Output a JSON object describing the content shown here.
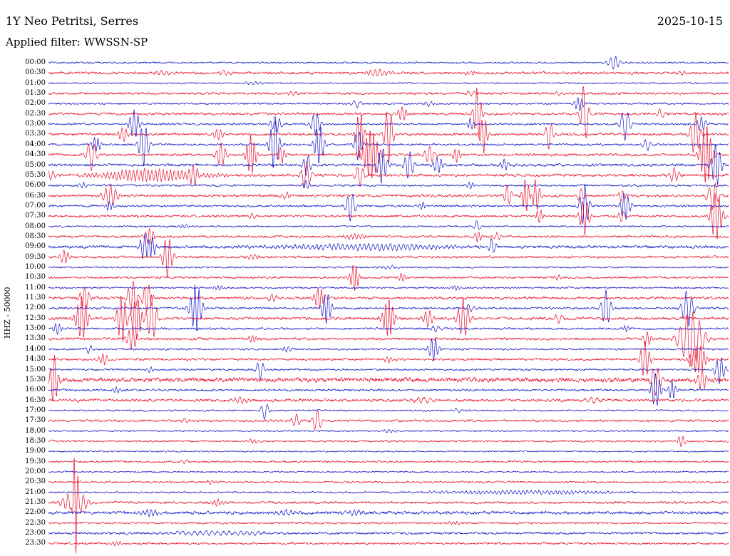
{
  "header": {
    "title": "1Y Neo Petritsi, Serres",
    "date": "2025-10-15",
    "filter_label": "Applied filter: WWSSN-SP"
  },
  "axis": {
    "ylabel": "HHZ - 50000"
  },
  "chart_data": {
    "type": "line",
    "title": "1Y Neo Petritsi, Serres",
    "subtitle": "Applied filter: WWSSN-SP",
    "date": "2025-10-15",
    "ylabel": "HHZ - 50000",
    "minutes_per_row": 30,
    "grid": false,
    "legend": "none",
    "colors": {
      "blue": "#1414c8",
      "red": "#e8112d"
    },
    "rows": [
      {
        "label": "00:00",
        "color": "blue",
        "noise": 1.0,
        "events": [
          [
            0.832,
            9,
            0.006
          ]
        ]
      },
      {
        "label": "00:30",
        "color": "red",
        "noise": 1.4,
        "events": [
          [
            0.17,
            3,
            0.008
          ],
          [
            0.26,
            3,
            0.008
          ],
          [
            0.485,
            4.5,
            0.012
          ],
          [
            0.62,
            2.5,
            0.006
          ],
          [
            0.93,
            2.5,
            0.006
          ]
        ]
      },
      {
        "label": "01:00",
        "color": "blue",
        "noise": 0.9,
        "events": [
          [
            0.3,
            1.5,
            0.01
          ]
        ]
      },
      {
        "label": "01:30",
        "color": "red",
        "noise": 1.3,
        "events": [
          [
            0.62,
            4,
            0.005
          ],
          [
            0.36,
            2.5,
            0.006
          ],
          [
            0.75,
            2.5,
            0.006
          ]
        ]
      },
      {
        "label": "02:00",
        "color": "blue",
        "noise": 1.0,
        "events": [
          [
            0.78,
            10,
            0.005
          ],
          [
            0.452,
            6,
            0.005
          ],
          [
            0.56,
            4,
            0.004
          ]
        ]
      },
      {
        "label": "02:30",
        "color": "red",
        "noise": 1.3,
        "events": [
          [
            0.631,
            38,
            0.004
          ],
          [
            0.788,
            42,
            0.004
          ],
          [
            0.52,
            10,
            0.005
          ],
          [
            0.9,
            6,
            0.005
          ]
        ]
      },
      {
        "label": "03:00",
        "color": "blue",
        "noise": 1.1,
        "events": [
          [
            0.848,
            22,
            0.005
          ],
          [
            0.126,
            20,
            0.005
          ],
          [
            0.335,
            12,
            0.005
          ],
          [
            0.393,
            16,
            0.005
          ],
          [
            0.62,
            8,
            0.004
          ],
          [
            0.96,
            10,
            0.005
          ]
        ]
      },
      {
        "label": "03:30",
        "color": "red",
        "noise": 1.4,
        "events": [
          [
            0.458,
            34,
            0.004
          ],
          [
            0.5,
            40,
            0.0045
          ],
          [
            0.64,
            26,
            0.004
          ],
          [
            0.736,
            20,
            0.004
          ],
          [
            0.951,
            30,
            0.005
          ],
          [
            0.11,
            10,
            0.005
          ],
          [
            0.25,
            8,
            0.005
          ]
        ]
      },
      {
        "label": "04:00",
        "color": "blue",
        "noise": 1.2,
        "events": [
          [
            0.14,
            30,
            0.005
          ],
          [
            0.332,
            36,
            0.005
          ],
          [
            0.398,
            28,
            0.005
          ],
          [
            0.455,
            22,
            0.004
          ],
          [
            0.07,
            10,
            0.005
          ],
          [
            0.88,
            8,
            0.004
          ]
        ]
      },
      {
        "label": "04:30",
        "color": "red",
        "noise": 1.4,
        "events": [
          [
            0.063,
            22,
            0.005
          ],
          [
            0.254,
            16,
            0.005
          ],
          [
            0.298,
            28,
            0.005
          ],
          [
            0.343,
            12,
            0.004
          ],
          [
            0.474,
            34,
            0.008
          ],
          [
            0.967,
            42,
            0.006
          ],
          [
            0.56,
            12,
            0.005
          ],
          [
            0.6,
            10,
            0.004
          ]
        ]
      },
      {
        "label": "05:00",
        "color": "blue",
        "noise": 1.5,
        "events": [
          [
            0.38,
            15,
            0.004
          ],
          [
            0.49,
            26,
            0.005
          ],
          [
            0.53,
            20,
            0.005
          ],
          [
            0.573,
            12,
            0.005
          ],
          [
            0.982,
            30,
            0.005
          ],
          [
            0.67,
            8,
            0.004
          ]
        ]
      },
      {
        "label": "05:30",
        "color": "red",
        "noise": 1.5,
        "events": [
          [
            0.15,
            8,
            0.055
          ],
          [
            0.215,
            12,
            0.006
          ],
          [
            0.379,
            20,
            0.005
          ],
          [
            0.458,
            14,
            0.005
          ],
          [
            0.92,
            10,
            0.005
          ],
          [
            0.0,
            6,
            0.008
          ]
        ]
      },
      {
        "label": "06:00",
        "color": "blue",
        "noise": 1.1,
        "events": [
          [
            0.379,
            6,
            0.004
          ],
          [
            0.62,
            5,
            0.004
          ],
          [
            0.05,
            4,
            0.005
          ]
        ]
      },
      {
        "label": "06:30",
        "color": "red",
        "noise": 1.4,
        "events": [
          [
            0.091,
            16,
            0.007
          ],
          [
            0.675,
            14,
            0.004
          ],
          [
            0.702,
            24,
            0.004
          ],
          [
            0.717,
            24,
            0.004
          ],
          [
            0.783,
            10,
            0.004
          ],
          [
            0.843,
            8,
            0.004
          ],
          [
            0.977,
            20,
            0.006
          ],
          [
            0.35,
            4,
            0.005
          ]
        ]
      },
      {
        "label": "07:00",
        "color": "blue",
        "noise": 1.2,
        "events": [
          [
            0.444,
            20,
            0.005
          ],
          [
            0.788,
            30,
            0.005
          ],
          [
            0.848,
            20,
            0.005
          ],
          [
            0.09,
            6,
            0.005
          ],
          [
            0.55,
            5,
            0.004
          ]
        ]
      },
      {
        "label": "07:30",
        "color": "red",
        "noise": 1.3,
        "events": [
          [
            0.722,
            10,
            0.004
          ],
          [
            0.788,
            26,
            0.005
          ],
          [
            0.843,
            8,
            0.004
          ],
          [
            0.982,
            34,
            0.006
          ],
          [
            0.3,
            4,
            0.005
          ]
        ]
      },
      {
        "label": "08:00",
        "color": "blue",
        "noise": 1.0,
        "events": [
          [
            0.63,
            8,
            0.004
          ],
          [
            0.2,
            3,
            0.005
          ]
        ]
      },
      {
        "label": "08:30",
        "color": "red",
        "noise": 1.3,
        "events": [
          [
            0.149,
            11,
            0.005
          ],
          [
            0.632,
            8,
            0.004
          ],
          [
            0.66,
            6,
            0.004
          ],
          [
            0.45,
            4,
            0.01
          ]
        ]
      },
      {
        "label": "09:00",
        "color": "blue",
        "noise": 1.6,
        "events": [
          [
            0.141,
            18,
            0.005
          ],
          [
            0.152,
            16,
            0.004
          ],
          [
            0.652,
            12,
            0.004
          ],
          [
            0.47,
            4,
            0.09
          ]
        ]
      },
      {
        "label": "09:30",
        "color": "red",
        "noise": 1.3,
        "events": [
          [
            0.023,
            10,
            0.005
          ],
          [
            0.175,
            30,
            0.005
          ],
          [
            0.3,
            4,
            0.006
          ]
        ]
      },
      {
        "label": "10:00",
        "color": "blue",
        "noise": 0.95,
        "events": [
          [
            0.5,
            2,
            0.01
          ]
        ]
      },
      {
        "label": "10:30",
        "color": "red",
        "noise": 1.25,
        "events": [
          [
            0.45,
            18,
            0.005
          ],
          [
            0.52,
            6,
            0.004
          ],
          [
            0.75,
            3,
            0.005
          ]
        ]
      },
      {
        "label": "11:00",
        "color": "blue",
        "noise": 1.0,
        "events": [
          [
            0.25,
            3,
            0.006
          ],
          [
            0.6,
            3,
            0.005
          ]
        ]
      },
      {
        "label": "11:30",
        "color": "red",
        "noise": 1.4,
        "events": [
          [
            0.053,
            15,
            0.005
          ],
          [
            0.123,
            25,
            0.005
          ],
          [
            0.145,
            20,
            0.005
          ],
          [
            0.398,
            15,
            0.005
          ],
          [
            0.33,
            6,
            0.005
          ]
        ]
      },
      {
        "label": "12:00",
        "color": "blue",
        "noise": 1.2,
        "events": [
          [
            0.217,
            34,
            0.006
          ],
          [
            0.409,
            22,
            0.005
          ],
          [
            0.82,
            25,
            0.005
          ],
          [
            0.94,
            25,
            0.006
          ],
          [
            0.62,
            6,
            0.004
          ]
        ]
      },
      {
        "label": "12:30",
        "color": "red",
        "noise": 1.5,
        "events": [
          [
            0.049,
            30,
            0.006
          ],
          [
            0.108,
            34,
            0.005
          ],
          [
            0.13,
            30,
            0.005
          ],
          [
            0.152,
            34,
            0.005
          ],
          [
            0.5,
            26,
            0.006
          ],
          [
            0.558,
            12,
            0.005
          ],
          [
            0.61,
            28,
            0.006
          ],
          [
            0.75,
            6,
            0.005
          ]
        ]
      },
      {
        "label": "13:00",
        "color": "blue",
        "noise": 1.2,
        "events": [
          [
            0.013,
            8,
            0.004
          ],
          [
            0.57,
            5,
            0.005
          ],
          [
            0.85,
            4,
            0.004
          ]
        ]
      },
      {
        "label": "13:30",
        "color": "red",
        "noise": 1.4,
        "events": [
          [
            0.123,
            18,
            0.005
          ],
          [
            0.945,
            40,
            0.012
          ],
          [
            0.88,
            10,
            0.005
          ],
          [
            0.3,
            5,
            0.005
          ]
        ]
      },
      {
        "label": "14:00",
        "color": "blue",
        "noise": 1.1,
        "events": [
          [
            0.566,
            18,
            0.005
          ],
          [
            0.06,
            6,
            0.004
          ],
          [
            0.35,
            4,
            0.005
          ]
        ]
      },
      {
        "label": "14:30",
        "color": "red",
        "noise": 1.3,
        "events": [
          [
            0.877,
            26,
            0.005
          ],
          [
            0.955,
            20,
            0.008
          ],
          [
            0.081,
            8,
            0.005
          ],
          [
            0.5,
            4,
            0.005
          ]
        ]
      },
      {
        "label": "15:00",
        "color": "blue",
        "noise": 1.05,
        "events": [
          [
            0.311,
            15,
            0.004
          ],
          [
            0.987,
            20,
            0.005
          ],
          [
            0.15,
            4,
            0.004
          ]
        ]
      },
      {
        "label": "15:30",
        "color": "red",
        "noise": 2.4,
        "events": [
          [
            0.008,
            35,
            0.004
          ],
          [
            0.893,
            20,
            0.005
          ],
          [
            0.961,
            14,
            0.005
          ]
        ]
      },
      {
        "label": "16:00",
        "color": "blue",
        "noise": 1.2,
        "events": [
          [
            0.893,
            24,
            0.005
          ],
          [
            0.917,
            14,
            0.004
          ],
          [
            0.1,
            4,
            0.005
          ]
        ]
      },
      {
        "label": "16:30",
        "color": "red",
        "noise": 1.6,
        "events": [
          [
            0.28,
            4,
            0.01
          ],
          [
            0.55,
            4,
            0.01
          ],
          [
            0.8,
            3,
            0.01
          ]
        ]
      },
      {
        "label": "17:00",
        "color": "blue",
        "noise": 0.95,
        "events": [
          [
            0.318,
            13,
            0.004
          ],
          [
            0.6,
            3,
            0.005
          ]
        ]
      },
      {
        "label": "17:30",
        "color": "red",
        "noise": 1.25,
        "events": [
          [
            0.364,
            10,
            0.004
          ],
          [
            0.395,
            15,
            0.005
          ],
          [
            0.2,
            3,
            0.005
          ]
        ]
      },
      {
        "label": "18:00",
        "color": "blue",
        "noise": 0.9,
        "events": [
          [
            0.5,
            2,
            0.008
          ]
        ]
      },
      {
        "label": "18:30",
        "color": "red",
        "noise": 1.1,
        "events": [
          [
            0.93,
            8,
            0.004
          ],
          [
            0.3,
            2.5,
            0.006
          ]
        ]
      },
      {
        "label": "19:00",
        "color": "blue",
        "noise": 0.85,
        "events": []
      },
      {
        "label": "19:30",
        "color": "red",
        "noise": 1.1,
        "events": [
          [
            0.2,
            2,
            0.006
          ]
        ]
      },
      {
        "label": "20:00",
        "color": "blue",
        "noise": 0.85,
        "events": []
      },
      {
        "label": "20:30",
        "color": "red",
        "noise": 1.1,
        "events": [
          [
            0.24,
            2.5,
            0.006
          ]
        ]
      },
      {
        "label": "21:00",
        "color": "blue",
        "noise": 1.0,
        "events": [
          [
            0.7,
            2.5,
            0.09
          ]
        ]
      },
      {
        "label": "21:30",
        "color": "red",
        "noise": 1.3,
        "events": [
          [
            0.039,
            62,
            0.003
          ],
          [
            0.039,
            18,
            0.012
          ],
          [
            0.25,
            4,
            0.006
          ]
        ]
      },
      {
        "label": "22:00",
        "color": "blue",
        "noise": 1.7,
        "events": [
          [
            0.15,
            4,
            0.01
          ],
          [
            0.35,
            4,
            0.01
          ],
          [
            0.45,
            3,
            0.01
          ]
        ]
      },
      {
        "label": "22:30",
        "color": "red",
        "noise": 1.1,
        "events": [
          [
            0.6,
            2,
            0.008
          ]
        ]
      },
      {
        "label": "23:00",
        "color": "blue",
        "noise": 1.3,
        "events": [
          [
            0.25,
            2.5,
            0.06
          ]
        ]
      },
      {
        "label": "23:30",
        "color": "red",
        "noise": 1.15,
        "events": [
          [
            0.1,
            3,
            0.006
          ]
        ]
      }
    ]
  }
}
